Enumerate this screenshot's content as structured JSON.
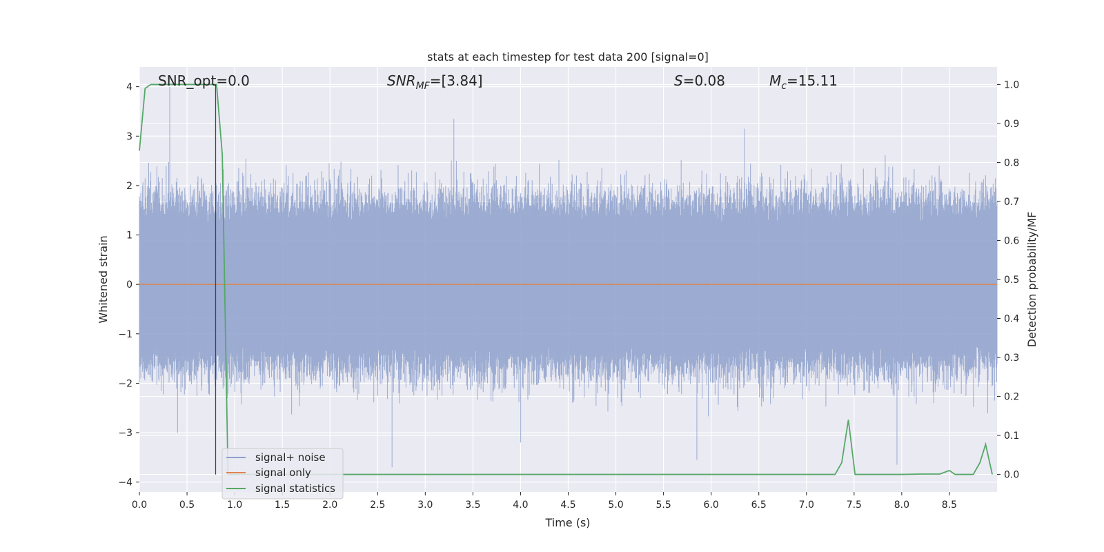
{
  "chart_data": {
    "type": "line",
    "title": "stats at each timestep for test data 200 [signal=0]",
    "xlabel": "Time (s)",
    "ylabel": "Whitened strain",
    "ylabel_right": "Detection probability/MF",
    "xlim": [
      0.0,
      9.0
    ],
    "ylim": [
      -4.2,
      4.4
    ],
    "ylim_right": [
      -0.045,
      1.045
    ],
    "x_ticks": [
      "0.0",
      "0.5",
      "1.0",
      "1.5",
      "2.0",
      "2.5",
      "3.0",
      "3.5",
      "4.0",
      "4.5",
      "5.0",
      "5.5",
      "6.0",
      "6.5",
      "7.0",
      "7.5",
      "8.0",
      "8.5"
    ],
    "x_tick_values": [
      0.0,
      0.5,
      1.0,
      1.5,
      2.0,
      2.5,
      3.0,
      3.5,
      4.0,
      4.5,
      5.0,
      5.5,
      6.0,
      6.5,
      7.0,
      7.5,
      8.0,
      8.5
    ],
    "y_ticks": [
      "4",
      "3",
      "2",
      "1",
      "0",
      "−1",
      "−2",
      "−3",
      "−4"
    ],
    "y_tick_values": [
      4,
      3,
      2,
      1,
      0,
      -1,
      -2,
      -3,
      -4
    ],
    "y_ticks_right": [
      "1.0",
      "0.9",
      "0.8",
      "0.7",
      "0.6",
      "0.5",
      "0.4",
      "0.3",
      "0.2",
      "0.1",
      "0.0"
    ],
    "y_tick_values_right": [
      1.0,
      0.9,
      0.8,
      0.7,
      0.6,
      0.5,
      0.4,
      0.3,
      0.2,
      0.1,
      0.0
    ],
    "grid": true,
    "legend_position": "lower-left",
    "annotations": {
      "snr_opt": "SNR_opt=0.0",
      "snr_mf": "SNR",
      "snr_mf_sub": "MF",
      "snr_mf_value": "=[3.84]",
      "s_var": "S",
      "s_value": "=0.08",
      "mc_var": "M",
      "mc_sub": "c",
      "mc_value": "=15.11"
    },
    "marker_line_x": 0.8,
    "series": [
      {
        "name": "signal+ noise",
        "color": "#8da0cb",
        "kind": "noise",
        "envelope_extremes": [
          {
            "x": 0.32,
            "y": 4.0
          },
          {
            "x": 3.3,
            "y": 3.35
          },
          {
            "x": 6.35,
            "y": 3.15
          },
          {
            "x": 2.65,
            "y": -3.7
          },
          {
            "x": 5.85,
            "y": -3.55
          },
          {
            "x": 7.95,
            "y": -3.65
          },
          {
            "x": 4.0,
            "y": -3.2
          },
          {
            "x": 0.4,
            "y": -3.0
          }
        ]
      },
      {
        "name": "signal only",
        "color": "#dd8452",
        "x": [
          0.0,
          9.0
        ],
        "y": [
          0.0,
          0.0
        ]
      },
      {
        "name": "signal statistics",
        "color": "#55a868",
        "axis": "right",
        "x": [
          0.0,
          0.06,
          0.12,
          0.3,
          0.5,
          0.75,
          0.81,
          0.87,
          0.93,
          1.0,
          1.5,
          2.0,
          3.0,
          4.0,
          5.0,
          6.0,
          7.0,
          7.3,
          7.37,
          7.44,
          7.51,
          7.6,
          8.0,
          8.2,
          8.4,
          8.5,
          8.56,
          8.65,
          8.75,
          8.82,
          8.88,
          8.95
        ],
        "y": [
          0.83,
          0.99,
          1.0,
          1.0,
          1.0,
          1.0,
          1.0,
          0.82,
          0.0,
          0.0,
          0.0,
          0.0,
          0.0,
          0.0,
          0.0,
          0.0,
          0.0,
          0.0,
          0.03,
          0.14,
          0.0,
          0.0,
          0.0,
          0.001,
          0.001,
          0.01,
          0.0,
          0.0,
          0.0,
          0.03,
          0.077,
          0.0
        ]
      }
    ]
  }
}
